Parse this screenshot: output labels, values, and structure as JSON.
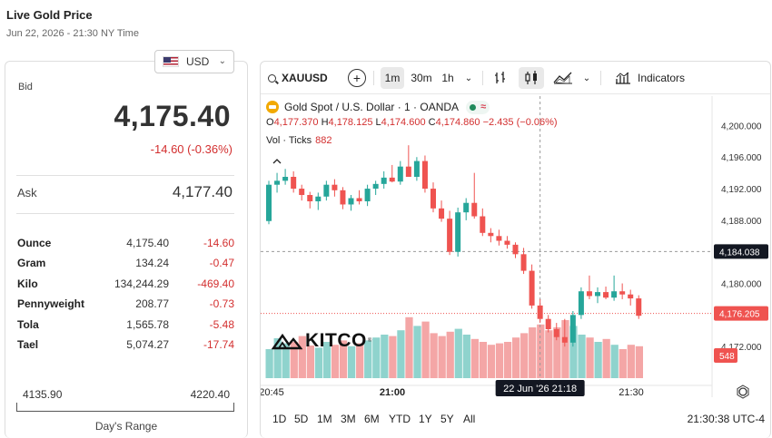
{
  "header": {
    "title": "Live Gold Price",
    "date": "Jun 22, 2026 - 21:30 NY Time"
  },
  "currency": {
    "selected": "USD"
  },
  "quote": {
    "bid_label": "Bid",
    "bid": "4,175.40",
    "change": "-14.60 (-0.36%)",
    "ask_label": "Ask",
    "ask": "4,177.40"
  },
  "units": [
    {
      "name": "Ounce",
      "price": "4,175.40",
      "change": "-14.60"
    },
    {
      "name": "Gram",
      "price": "134.24",
      "change": "-0.47"
    },
    {
      "name": "Kilo",
      "price": "134,244.29",
      "change": "-469.40"
    },
    {
      "name": "Pennyweight",
      "price": "208.77",
      "change": "-0.73"
    },
    {
      "name": "Tola",
      "price": "1,565.78",
      "change": "-5.48"
    },
    {
      "name": "Tael",
      "price": "5,074.27",
      "change": "-17.74"
    }
  ],
  "days_range": {
    "low": "4135.90",
    "high": "4220.40",
    "label": "Day's Range"
  },
  "toolbar": {
    "symbol": "XAUUSD",
    "plus": "+",
    "intervals": [
      "1m",
      "30m",
      "1h"
    ],
    "active_interval": "1m",
    "indicators": "Indicators"
  },
  "legend": {
    "title": "Gold Spot / U.S. Dollar · 1 · OANDA",
    "o_key": "O",
    "o": "4,177.370",
    "h_key": "H",
    "h": "4,178.125",
    "l_key": "L",
    "l": "4,174.600",
    "c_key": "C",
    "c": "4,174.860",
    "chg": "−2.435 (−0.06%)",
    "vol_label": "Vol · Ticks",
    "vol": "882"
  },
  "brand": "KITCO",
  "ranges": [
    "1D",
    "5D",
    "1M",
    "3M",
    "6M",
    "YTD",
    "1Y",
    "5Y",
    "All"
  ],
  "clock": "21:30:38 UTC-4",
  "colors": {
    "up": "#26a69a",
    "down": "#ef5350",
    "vol_up": "#8fd3cd",
    "vol_down": "#f4a6a6",
    "negative": "#d32f2f"
  },
  "chart_data": {
    "type": "candlestick",
    "symbol": "XAUUSD",
    "interval": "1m",
    "x_ticks": [
      "20:45",
      "21:00",
      "21:30"
    ],
    "crosshair_time": "22 Jun '26   21:18",
    "y_ticks": [
      4172,
      4176,
      4180,
      4184,
      4188,
      4192,
      4196,
      4200
    ],
    "y_tick_labels": [
      "4,172.000",
      "4,176.000",
      "4,180.000",
      "4,184.000",
      "4,188.000",
      "4,192.000",
      "4,196.000",
      "4,200.000"
    ],
    "ylim": [
      4168,
      4202
    ],
    "crosshair_price": "4,184.038",
    "crosshair_price_value": 4184.038,
    "last_price": "4,176.205",
    "last_price_value": 4176.205,
    "last_volume": "548",
    "candles": [
      {
        "o": 4187.9,
        "h": 4193.0,
        "l": 4187.5,
        "c": 4192.5
      },
      {
        "o": 4192.5,
        "h": 4194.0,
        "l": 4191.5,
        "c": 4193.0
      },
      {
        "o": 4193.0,
        "h": 4194.5,
        "l": 4192.5,
        "c": 4193.5
      },
      {
        "o": 4193.5,
        "h": 4194.2,
        "l": 4191.5,
        "c": 4192.0
      },
      {
        "o": 4192.0,
        "h": 4192.5,
        "l": 4190.5,
        "c": 4191.2
      },
      {
        "o": 4191.2,
        "h": 4191.6,
        "l": 4189.5,
        "c": 4190.4
      },
      {
        "o": 4190.4,
        "h": 4191.5,
        "l": 4189.3,
        "c": 4191.0
      },
      {
        "o": 4191.0,
        "h": 4193.0,
        "l": 4190.5,
        "c": 4192.5
      },
      {
        "o": 4192.5,
        "h": 4193.2,
        "l": 4191.0,
        "c": 4191.8
      },
      {
        "o": 4191.8,
        "h": 4192.2,
        "l": 4189.4,
        "c": 4190.0
      },
      {
        "o": 4190.0,
        "h": 4191.2,
        "l": 4189.2,
        "c": 4190.8
      },
      {
        "o": 4190.8,
        "h": 4191.8,
        "l": 4190.0,
        "c": 4190.4
      },
      {
        "o": 4190.4,
        "h": 4192.5,
        "l": 4189.8,
        "c": 4192.0
      },
      {
        "o": 4192.0,
        "h": 4193.0,
        "l": 4191.2,
        "c": 4192.6
      },
      {
        "o": 4192.6,
        "h": 4194.2,
        "l": 4192.0,
        "c": 4193.4
      },
      {
        "o": 4193.4,
        "h": 4195.0,
        "l": 4192.8,
        "c": 4192.9
      },
      {
        "o": 4192.9,
        "h": 4195.5,
        "l": 4192.5,
        "c": 4194.8
      },
      {
        "o": 4194.8,
        "h": 4197.5,
        "l": 4193.8,
        "c": 4193.5
      },
      {
        "o": 4193.5,
        "h": 4196.0,
        "l": 4193.0,
        "c": 4195.5
      },
      {
        "o": 4195.5,
        "h": 4196.2,
        "l": 4191.5,
        "c": 4192.0
      },
      {
        "o": 4192.0,
        "h": 4192.8,
        "l": 4189.0,
        "c": 4189.5
      },
      {
        "o": 4189.5,
        "h": 4190.5,
        "l": 4187.8,
        "c": 4188.2
      },
      {
        "o": 4188.2,
        "h": 4189.2,
        "l": 4183.6,
        "c": 4184.0
      },
      {
        "o": 4184.0,
        "h": 4189.6,
        "l": 4183.4,
        "c": 4189.0
      },
      {
        "o": 4189.0,
        "h": 4190.8,
        "l": 4188.0,
        "c": 4190.2
      },
      {
        "o": 4190.2,
        "h": 4194.0,
        "l": 4188.2,
        "c": 4188.5
      },
      {
        "o": 4188.5,
        "h": 4189.5,
        "l": 4186.0,
        "c": 4186.4
      },
      {
        "o": 4186.4,
        "h": 4187.0,
        "l": 4185.2,
        "c": 4186.0
      },
      {
        "o": 4186.0,
        "h": 4186.8,
        "l": 4184.8,
        "c": 4185.4
      },
      {
        "o": 4185.4,
        "h": 4186.0,
        "l": 4184.4,
        "c": 4184.9
      },
      {
        "o": 4184.9,
        "h": 4185.2,
        "l": 4183.2,
        "c": 4183.7
      },
      {
        "o": 4183.7,
        "h": 4184.5,
        "l": 4181.2,
        "c": 4181.6
      },
      {
        "o": 4181.6,
        "h": 4182.4,
        "l": 4176.8,
        "c": 4177.2
      },
      {
        "o": 4177.2,
        "h": 4178.0,
        "l": 4175.0,
        "c": 4175.5
      },
      {
        "o": 4175.5,
        "h": 4176.0,
        "l": 4173.8,
        "c": 4174.2
      },
      {
        "o": 4174.2,
        "h": 4175.0,
        "l": 4172.8,
        "c": 4173.2
      },
      {
        "o": 4173.2,
        "h": 4175.5,
        "l": 4172.0,
        "c": 4172.5
      },
      {
        "o": 4172.5,
        "h": 4176.5,
        "l": 4172.0,
        "c": 4176.0
      },
      {
        "o": 4176.0,
        "h": 4179.5,
        "l": 4175.5,
        "c": 4179.0
      },
      {
        "o": 4179.0,
        "h": 4181.0,
        "l": 4178.0,
        "c": 4178.4
      },
      {
        "o": 4178.4,
        "h": 4179.5,
        "l": 4177.5,
        "c": 4178.9
      },
      {
        "o": 4178.9,
        "h": 4179.6,
        "l": 4178.0,
        "c": 4178.2
      },
      {
        "o": 4178.2,
        "h": 4181.0,
        "l": 4177.8,
        "c": 4179.0
      },
      {
        "o": 4179.0,
        "h": 4180.0,
        "l": 4178.0,
        "c": 4178.6
      },
      {
        "o": 4178.6,
        "h": 4179.2,
        "l": 4177.2,
        "c": 4178.1
      },
      {
        "o": 4178.1,
        "h": 4178.5,
        "l": 4175.5,
        "c": 4175.9
      }
    ],
    "volumes": [
      40,
      55,
      48,
      50,
      58,
      45,
      42,
      50,
      46,
      52,
      44,
      48,
      52,
      56,
      60,
      58,
      66,
      84,
      72,
      78,
      62,
      58,
      64,
      68,
      60,
      54,
      50,
      46,
      48,
      50,
      56,
      62,
      70,
      74,
      66,
      70,
      80,
      72,
      60,
      56,
      50,
      54,
      46,
      40,
      46,
      44
    ]
  }
}
